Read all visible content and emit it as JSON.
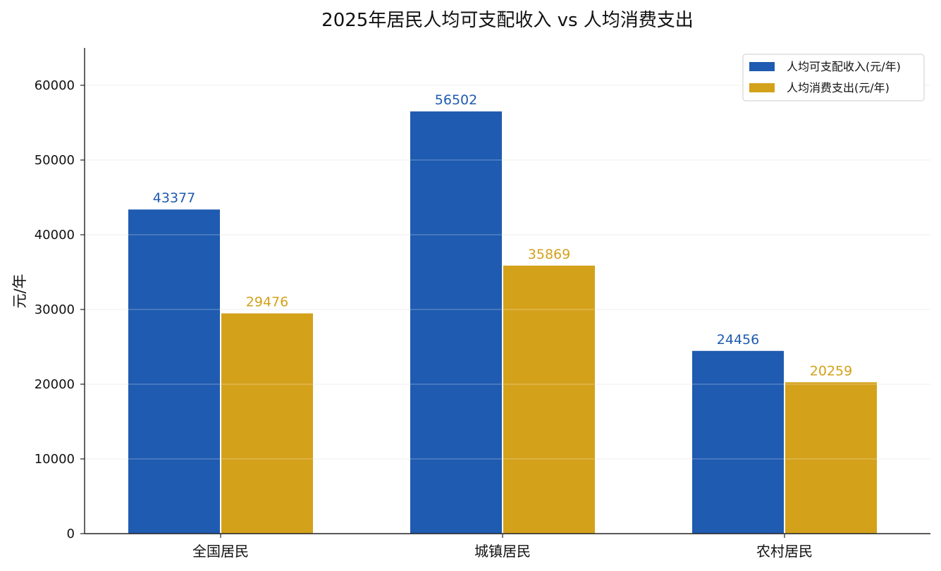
{
  "chart_data": {
    "type": "bar",
    "title": "2025年居民人均可支配收入 vs 人均消费支出",
    "xlabel": "",
    "ylabel": "元/年",
    "categories": [
      "全国居民",
      "城镇居民",
      "农村居民"
    ],
    "series": [
      {
        "name": "人均可支配收入(元/年)",
        "values": [
          43377,
          56502,
          24456
        ],
        "color": "#1f5bb0"
      },
      {
        "name": "人均消费支出(元/年)",
        "values": [
          29476,
          35869,
          20259
        ],
        "color": "#d4a11b"
      }
    ],
    "ylim": [
      0,
      65000
    ],
    "yticks": [
      0,
      10000,
      20000,
      30000,
      40000,
      50000,
      60000
    ],
    "grid": true,
    "legend_position": "top-right",
    "data_labels": true
  }
}
